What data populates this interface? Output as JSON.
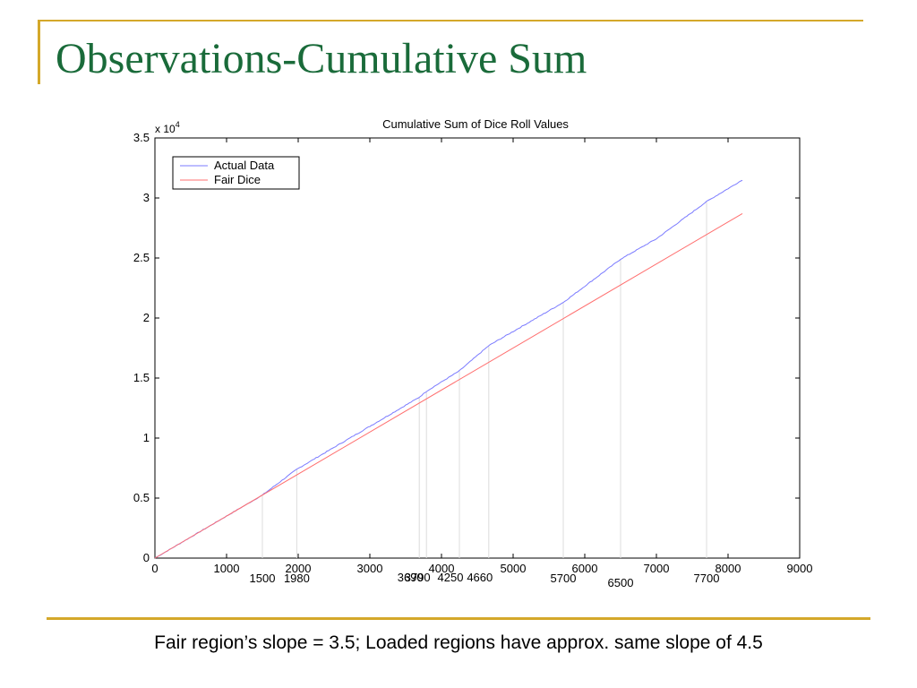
{
  "slide": {
    "title": "Observations-Cumulative Sum",
    "caption": "Fair region’s slope = 3.5; Loaded regions have approx. same slope of 4.5"
  },
  "colors": {
    "accent": "#d4a82a",
    "title": "#1a6b3a",
    "actual": "#7b7bff",
    "fair": "#ff6f6f"
  },
  "chart_data": {
    "type": "line",
    "title": "Cumulative Sum of Dice Roll Values",
    "xlabel": "",
    "ylabel": "",
    "y_exponent_label": "x 10",
    "y_exponent_power": "4",
    "xlim": [
      0,
      9000
    ],
    "ylim": [
      0,
      35000
    ],
    "x_ticks": [
      "0",
      "1000",
      "2000",
      "3000",
      "4000",
      "5000",
      "6000",
      "7000",
      "8000",
      "9000"
    ],
    "y_ticks": [
      "0",
      "0.5",
      "1",
      "1.5",
      "2",
      "2.5",
      "3",
      "3.5"
    ],
    "grid": false,
    "legend_position": "top-left",
    "series": [
      {
        "name": "Actual Data",
        "color": "#7b7bff",
        "x": [
          0,
          1500,
          1980,
          3690,
          3790,
          4250,
          4660,
          5700,
          6500,
          7000,
          7700,
          8200
        ],
        "y": [
          0,
          5250,
          7400,
          13400,
          13900,
          15600,
          17700,
          21300,
          24900,
          26600,
          29700,
          31500
        ]
      },
      {
        "name": "Fair Dice",
        "color": "#ff6f6f",
        "x": [
          0,
          8200
        ],
        "y": [
          0,
          28700
        ]
      }
    ],
    "annotations": [
      {
        "x": 1500,
        "label": "1500",
        "row": 1
      },
      {
        "x": 1980,
        "label": "1980",
        "row": 1
      },
      {
        "x": 3690,
        "label": "3690",
        "row": 0
      },
      {
        "x": 3790,
        "label": "3790",
        "row": 0
      },
      {
        "x": 4250,
        "label": "4250",
        "row": 0
      },
      {
        "x": 4660,
        "label": "4660",
        "row": 0
      },
      {
        "x": 5700,
        "label": "5700",
        "row": 1
      },
      {
        "x": 6500,
        "label": "6500",
        "row": 2
      },
      {
        "x": 7700,
        "label": "7700",
        "row": 1
      }
    ]
  }
}
